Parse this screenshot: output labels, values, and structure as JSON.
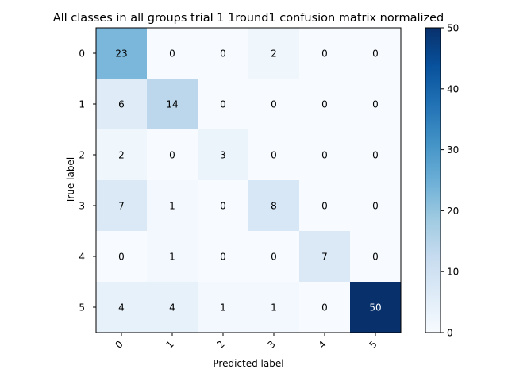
{
  "chart_data": {
    "type": "heatmap",
    "title": "All classes in all groups trial 1 1round1 confusion matrix normalized",
    "xlabel": "Predicted label",
    "ylabel": "True label",
    "x_categories": [
      "0",
      "1",
      "2",
      "3",
      "4",
      "5"
    ],
    "y_categories": [
      "0",
      "1",
      "2",
      "3",
      "4",
      "5"
    ],
    "matrix": [
      [
        23,
        0,
        0,
        2,
        0,
        0
      ],
      [
        6,
        14,
        0,
        0,
        0,
        0
      ],
      [
        2,
        0,
        3,
        0,
        0,
        0
      ],
      [
        7,
        1,
        0,
        8,
        0,
        0
      ],
      [
        0,
        1,
        0,
        0,
        7,
        0
      ],
      [
        4,
        4,
        1,
        1,
        0,
        50
      ]
    ],
    "colorbar": {
      "range": [
        0,
        50
      ],
      "ticks": [
        "0",
        "10",
        "20",
        "30",
        "40",
        "50"
      ],
      "colormap": "Blues"
    },
    "colors": {
      "low": "#f7fbff",
      "high": "#08306b",
      "text_dark": "#000000",
      "text_light": "#ffffff"
    }
  }
}
